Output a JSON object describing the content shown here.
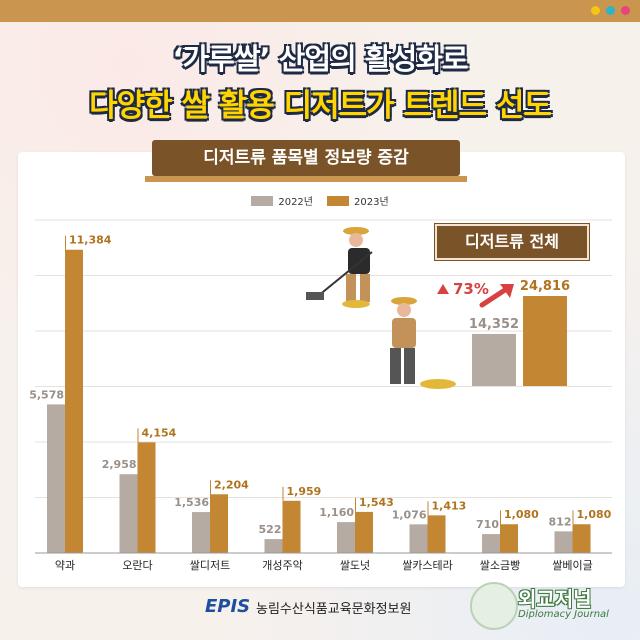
{
  "header": {
    "title_line1": "‘가루쌀’ 산업의 활성화로",
    "title_line2": "다양한 쌀 활용 디저트가 트렌드 선도"
  },
  "chart_data": {
    "type": "bar",
    "title": "디저트류 품목별 정보량 증감",
    "categories": [
      "약과",
      "오란다",
      "쌀디저트",
      "개성주악",
      "쌀도넛",
      "쌀카스테라",
      "쌀소금빵",
      "쌀베이글"
    ],
    "series": [
      {
        "name": "2022년",
        "values": [
          5578,
          2958,
          1536,
          522,
          1160,
          1076,
          710,
          812
        ],
        "color": "#b5aba3"
      },
      {
        "name": "2023년",
        "values": [
          11384,
          4154,
          2204,
          1959,
          1543,
          1413,
          1080,
          1080
        ],
        "color": "#c38632"
      }
    ],
    "ylim": [
      0,
      12500
    ],
    "grid": true,
    "legend_placement": "top-center",
    "inset": {
      "title": "디저트류 전체",
      "values": [
        14352,
        24816
      ],
      "growth_label": "73%"
    }
  },
  "colors": {
    "accent": "#c38632",
    "brown": "#7a5428",
    "gray": "#b5aba3",
    "growth": "#d94040",
    "dot1": "#f5c518",
    "dot2": "#2cb5c4",
    "dot3": "#e8457a"
  },
  "footer": {
    "source_logo": "EPIS",
    "source_name": "농림수산식품교육문화정보원",
    "brand_name": "외교저널",
    "brand_sub": "Diplomacy Journal"
  }
}
